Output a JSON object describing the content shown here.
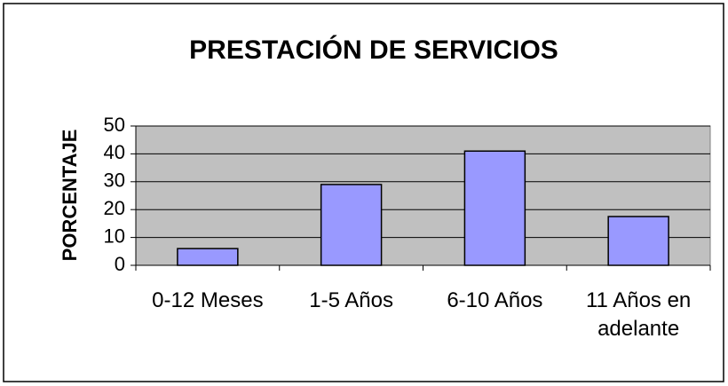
{
  "chart_data": {
    "type": "bar",
    "title": "PRESTACIÓN DE SERVICIOS",
    "y_label": "PORCENTAJE",
    "categories": [
      "0-12 Meses",
      "1-5 Años",
      "6-10 Años",
      "11 Años en adelante"
    ],
    "values": [
      6,
      29,
      41,
      17.5
    ],
    "color": "#9999ff",
    "ylim": [
      0,
      50
    ],
    "yticks": [
      0,
      10,
      20,
      30,
      40,
      50
    ],
    "grid": true
  }
}
